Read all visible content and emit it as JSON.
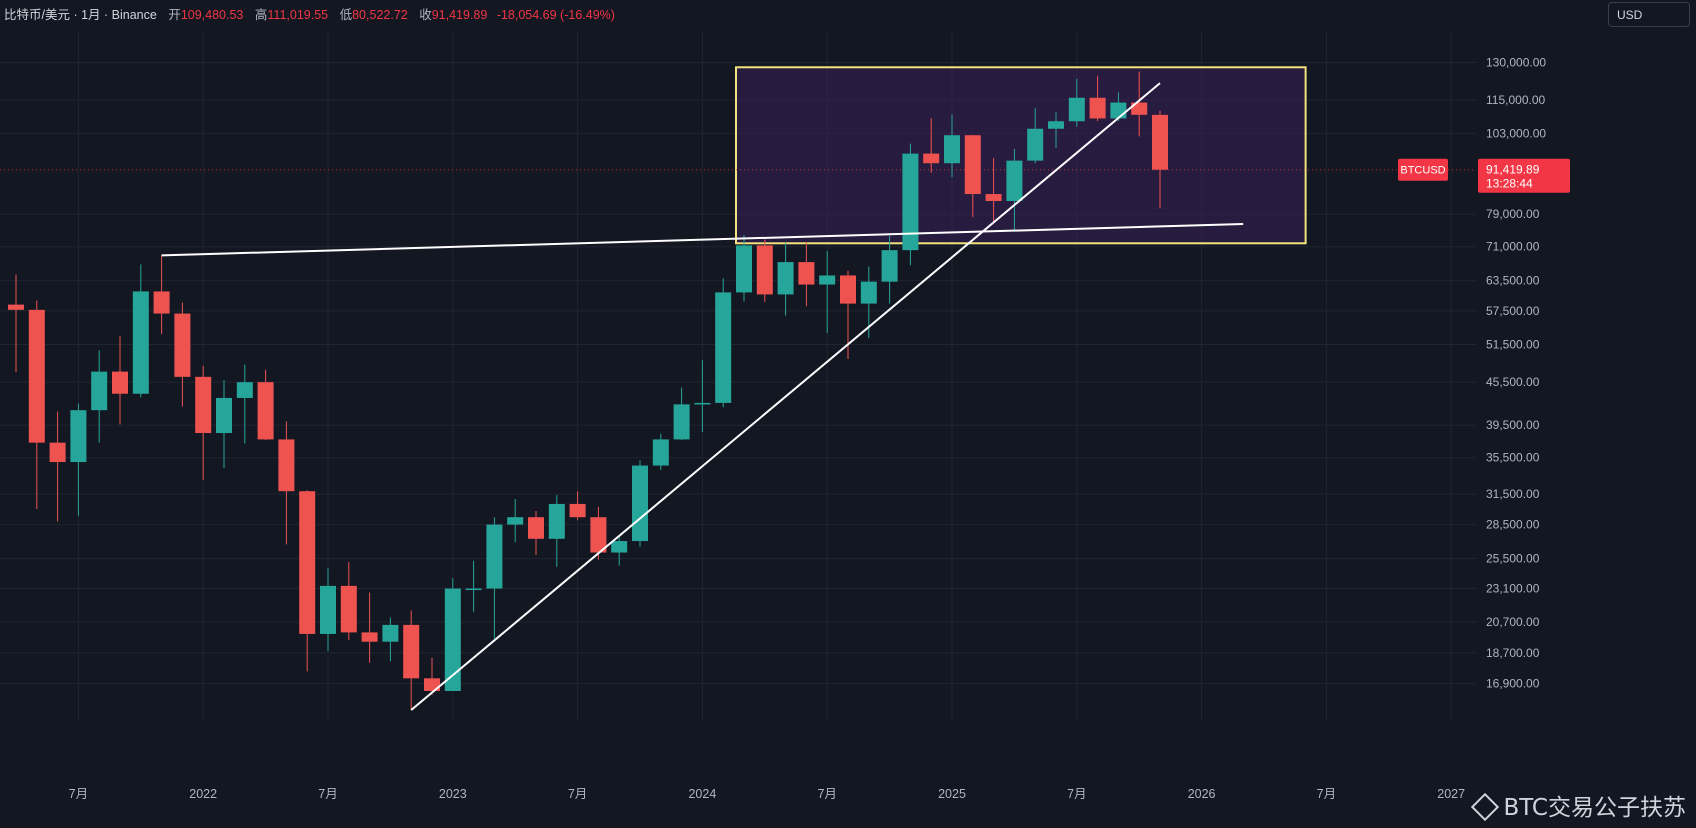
{
  "header": {
    "symbol": "比特币/美元 · 1月 · Binance",
    "open_label": "开",
    "open_value": "109,480.53",
    "high_label": "高",
    "high_value": "111,019.55",
    "low_label": "低",
    "low_value": "80,522.72",
    "close_label": "收",
    "close_value": "91,419.89",
    "change_value": "-18,054.69 (-16.49%)"
  },
  "currency": "USD",
  "price_tag": {
    "symbol": "BTCUSD",
    "price": "91,419.89",
    "countdown": "13:28:44"
  },
  "watermark": "BTC交易公子扶苏",
  "colors": {
    "background": "#131722",
    "up": "#26a69a",
    "down": "#ef5350",
    "box_border": "#f3e37c",
    "box_fill": "#3b1f5a",
    "trendline": "#ffffff",
    "price_tag": "#f23645"
  },
  "chart_data": {
    "type": "candlestick",
    "interval": "1M",
    "y_scale": "log",
    "ylim": [
      15500,
      140000
    ],
    "y_ticks": [
      {
        "value": 130000,
        "label": "130,000.00"
      },
      {
        "value": 115000,
        "label": "115,000.00"
      },
      {
        "value": 103000,
        "label": "103,000.00"
      },
      {
        "value": 79000,
        "label": "79,000.00"
      },
      {
        "value": 71000,
        "label": "71,000.00"
      },
      {
        "value": 63500,
        "label": "63,500.00"
      },
      {
        "value": 57500,
        "label": "57,500.00"
      },
      {
        "value": 51500,
        "label": "51,500.00"
      },
      {
        "value": 45500,
        "label": "45,500.00"
      },
      {
        "value": 39500,
        "label": "39,500.00"
      },
      {
        "value": 35500,
        "label": "35,500.00"
      },
      {
        "value": 31500,
        "label": "31,500.00"
      },
      {
        "value": 28500,
        "label": "28,500.00"
      },
      {
        "value": 25500,
        "label": "25,500.00"
      },
      {
        "value": 23100,
        "label": "23,100.00"
      },
      {
        "value": 20700,
        "label": "20,700.00"
      },
      {
        "value": 18700,
        "label": "18,700.00"
      },
      {
        "value": 16900,
        "label": "16,900.00"
      }
    ],
    "x_ticks": [
      {
        "date": "2021-07",
        "label": "7月"
      },
      {
        "date": "2022-01",
        "label": "2022"
      },
      {
        "date": "2022-07",
        "label": "7月"
      },
      {
        "date": "2023-01",
        "label": "2023"
      },
      {
        "date": "2023-07",
        "label": "7月"
      },
      {
        "date": "2024-01",
        "label": "2024"
      },
      {
        "date": "2024-07",
        "label": "7月"
      },
      {
        "date": "2025-01",
        "label": "2025"
      },
      {
        "date": "2025-07",
        "label": "7月"
      },
      {
        "date": "2026-01",
        "label": "2026"
      },
      {
        "date": "2026-07",
        "label": "7月"
      },
      {
        "date": "2027-01",
        "label": "2027"
      }
    ],
    "candles": [
      {
        "date": "2021-04",
        "o": 58700,
        "h": 64800,
        "l": 47000,
        "c": 57700
      },
      {
        "date": "2021-05",
        "o": 57700,
        "h": 59500,
        "l": 30000,
        "c": 37300
      },
      {
        "date": "2021-06",
        "o": 37300,
        "h": 41300,
        "l": 28800,
        "c": 35000
      },
      {
        "date": "2021-07",
        "o": 35000,
        "h": 42400,
        "l": 29300,
        "c": 41500
      },
      {
        "date": "2021-08",
        "o": 41500,
        "h": 50500,
        "l": 37300,
        "c": 47100
      },
      {
        "date": "2021-09",
        "o": 47100,
        "h": 52900,
        "l": 39600,
        "c": 43800
      },
      {
        "date": "2021-10",
        "o": 43800,
        "h": 67000,
        "l": 43300,
        "c": 61300
      },
      {
        "date": "2021-11",
        "o": 61300,
        "h": 69000,
        "l": 53300,
        "c": 57000
      },
      {
        "date": "2021-12",
        "o": 57000,
        "h": 59100,
        "l": 42000,
        "c": 46300
      },
      {
        "date": "2022-01",
        "o": 46300,
        "h": 48000,
        "l": 33000,
        "c": 38500
      },
      {
        "date": "2022-02",
        "o": 38500,
        "h": 45800,
        "l": 34300,
        "c": 43200
      },
      {
        "date": "2022-03",
        "o": 43200,
        "h": 48200,
        "l": 37200,
        "c": 45500
      },
      {
        "date": "2022-04",
        "o": 45500,
        "h": 47400,
        "l": 37600,
        "c": 37700
      },
      {
        "date": "2022-05",
        "o": 37700,
        "h": 40000,
        "l": 26700,
        "c": 31800
      },
      {
        "date": "2022-06",
        "o": 31800,
        "h": 31900,
        "l": 17600,
        "c": 19900
      },
      {
        "date": "2022-07",
        "o": 19900,
        "h": 24700,
        "l": 18800,
        "c": 23300
      },
      {
        "date": "2022-08",
        "o": 23300,
        "h": 25200,
        "l": 19500,
        "c": 20000
      },
      {
        "date": "2022-09",
        "o": 20000,
        "h": 22800,
        "l": 18100,
        "c": 19400
      },
      {
        "date": "2022-10",
        "o": 19400,
        "h": 21000,
        "l": 18200,
        "c": 20500
      },
      {
        "date": "2022-11",
        "o": 20500,
        "h": 21500,
        "l": 15500,
        "c": 17200
      },
      {
        "date": "2022-12",
        "o": 17200,
        "h": 18400,
        "l": 16300,
        "c": 16500
      },
      {
        "date": "2023-01",
        "o": 16500,
        "h": 23900,
        "l": 16500,
        "c": 23100
      },
      {
        "date": "2023-02",
        "o": 23100,
        "h": 25300,
        "l": 21400,
        "c": 23100
      },
      {
        "date": "2023-03",
        "o": 23100,
        "h": 29200,
        "l": 19600,
        "c": 28500
      },
      {
        "date": "2023-04",
        "o": 28500,
        "h": 31000,
        "l": 26900,
        "c": 29200
      },
      {
        "date": "2023-05",
        "o": 29200,
        "h": 29800,
        "l": 25800,
        "c": 27200
      },
      {
        "date": "2023-06",
        "o": 27200,
        "h": 31400,
        "l": 24800,
        "c": 30500
      },
      {
        "date": "2023-07",
        "o": 30500,
        "h": 31800,
        "l": 28900,
        "c": 29200
      },
      {
        "date": "2023-08",
        "o": 29200,
        "h": 30200,
        "l": 25400,
        "c": 26000
      },
      {
        "date": "2023-09",
        "o": 26000,
        "h": 27500,
        "l": 24900,
        "c": 27000
      },
      {
        "date": "2023-10",
        "o": 27000,
        "h": 35200,
        "l": 26500,
        "c": 34600
      },
      {
        "date": "2023-11",
        "o": 34600,
        "h": 38400,
        "l": 34100,
        "c": 37700
      },
      {
        "date": "2023-12",
        "o": 37700,
        "h": 44700,
        "l": 37600,
        "c": 42300
      },
      {
        "date": "2024-01",
        "o": 42300,
        "h": 48900,
        "l": 38600,
        "c": 42500
      },
      {
        "date": "2024-02",
        "o": 42500,
        "h": 64000,
        "l": 41900,
        "c": 61100
      },
      {
        "date": "2024-03",
        "o": 61100,
        "h": 73800,
        "l": 59300,
        "c": 71300
      },
      {
        "date": "2024-04",
        "o": 71300,
        "h": 72700,
        "l": 59200,
        "c": 60700
      },
      {
        "date": "2024-05",
        "o": 60700,
        "h": 71900,
        "l": 56600,
        "c": 67500
      },
      {
        "date": "2024-06",
        "o": 67500,
        "h": 71900,
        "l": 58400,
        "c": 62700
      },
      {
        "date": "2024-07",
        "o": 62700,
        "h": 70000,
        "l": 53500,
        "c": 64600
      },
      {
        "date": "2024-08",
        "o": 64600,
        "h": 65600,
        "l": 49100,
        "c": 58900
      },
      {
        "date": "2024-09",
        "o": 58900,
        "h": 66500,
        "l": 52600,
        "c": 63300
      },
      {
        "date": "2024-10",
        "o": 63300,
        "h": 73600,
        "l": 58900,
        "c": 70200
      },
      {
        "date": "2024-11",
        "o": 70200,
        "h": 99600,
        "l": 66800,
        "c": 96400
      },
      {
        "date": "2024-12",
        "o": 96400,
        "h": 108300,
        "l": 90500,
        "c": 93400
      },
      {
        "date": "2025-01",
        "o": 93400,
        "h": 109600,
        "l": 89200,
        "c": 102400
      },
      {
        "date": "2025-02",
        "o": 102400,
        "h": 102500,
        "l": 78300,
        "c": 84400
      },
      {
        "date": "2025-03",
        "o": 84400,
        "h": 95000,
        "l": 76600,
        "c": 82500
      },
      {
        "date": "2025-04",
        "o": 82500,
        "h": 97900,
        "l": 74500,
        "c": 94200
      },
      {
        "date": "2025-05",
        "o": 94200,
        "h": 111900,
        "l": 93400,
        "c": 104600
      },
      {
        "date": "2025-06",
        "o": 104600,
        "h": 110400,
        "l": 98200,
        "c": 107200
      },
      {
        "date": "2025-07",
        "o": 107200,
        "h": 123200,
        "l": 105300,
        "c": 115800
      },
      {
        "date": "2025-08",
        "o": 115800,
        "h": 124500,
        "l": 107300,
        "c": 108200
      },
      {
        "date": "2025-09",
        "o": 108200,
        "h": 117900,
        "l": 107300,
        "c": 114000
      },
      {
        "date": "2025-10",
        "o": 114000,
        "h": 126200,
        "l": 102000,
        "c": 109500
      },
      {
        "date": "2025-11",
        "o": 109480.53,
        "h": 111019.55,
        "l": 80522.72,
        "c": 91419.89
      }
    ],
    "current_price": 91419.89,
    "annotations": {
      "range_box": {
        "start": "2024-03",
        "end": "2026-06",
        "low": 71800,
        "high": 128000
      },
      "lines": [
        {
          "name": "horizontal-resistance",
          "from": {
            "date": "2021-11",
            "price": 69000
          },
          "to": {
            "date": "2026-03",
            "price": 76500
          }
        },
        {
          "name": "rising-trendline",
          "from": {
            "date": "2022-11",
            "price": 15500
          },
          "to": {
            "date": "2025-11",
            "price": 121500
          }
        }
      ]
    }
  }
}
